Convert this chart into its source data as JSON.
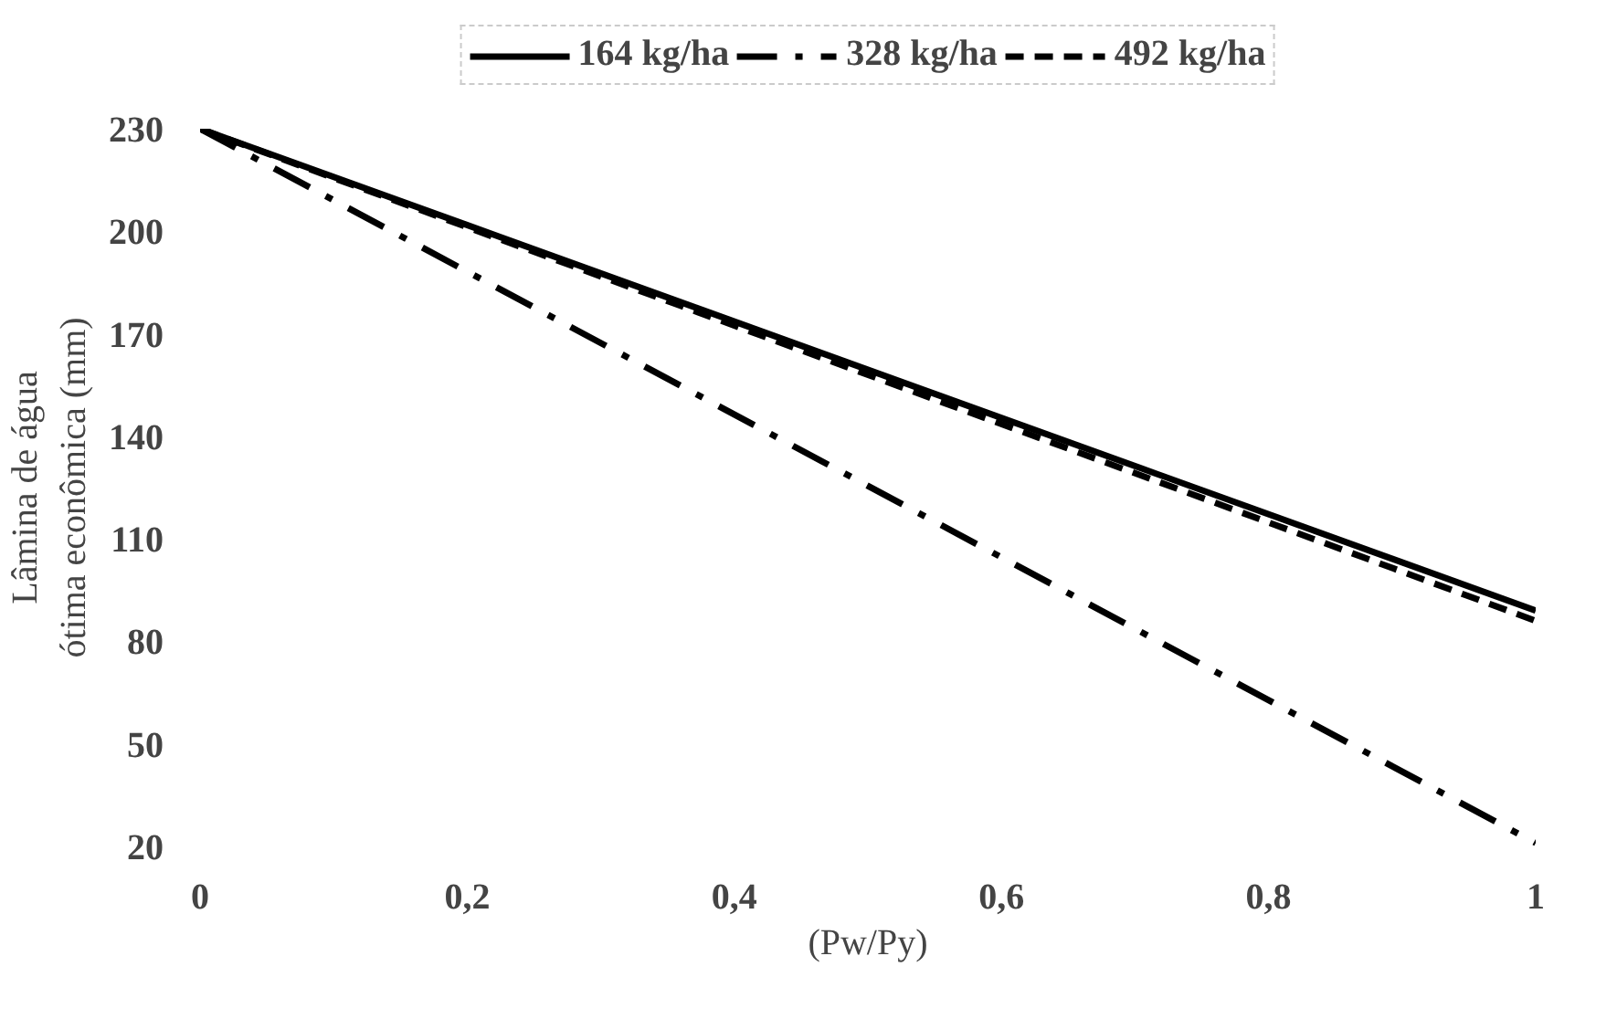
{
  "chart_data": {
    "type": "line",
    "xlabel": "(Pw/Py)",
    "ylabel": "Lâmina de água\nótima econômica (mm)",
    "x": [
      0,
      1
    ],
    "series": [
      {
        "name": "164 kg/ha",
        "color": "#000000",
        "line_style": "solid",
        "values": [
          230,
          89
        ]
      },
      {
        "name": "328 kg/ha",
        "color": "#000000",
        "line_style": "dashdot",
        "values": [
          230,
          21
        ]
      },
      {
        "name": "492 kg/ha",
        "color": "#000000",
        "line_style": "dashed",
        "values": [
          230,
          86
        ]
      }
    ],
    "xlim": [
      0,
      1
    ],
    "ylim": [
      20,
      230
    ],
    "xticks": [
      0,
      {
        "value": 0.2,
        "label": "0,2"
      },
      {
        "value": 0.4,
        "label": "0,4"
      },
      {
        "value": 0.6,
        "label": "0,6"
      },
      {
        "value": 0.8,
        "label": "0,8"
      },
      1
    ],
    "yticks": [
      20,
      50,
      80,
      110,
      140,
      170,
      200,
      230
    ],
    "grid": false,
    "legend": "top",
    "marker": "none"
  }
}
